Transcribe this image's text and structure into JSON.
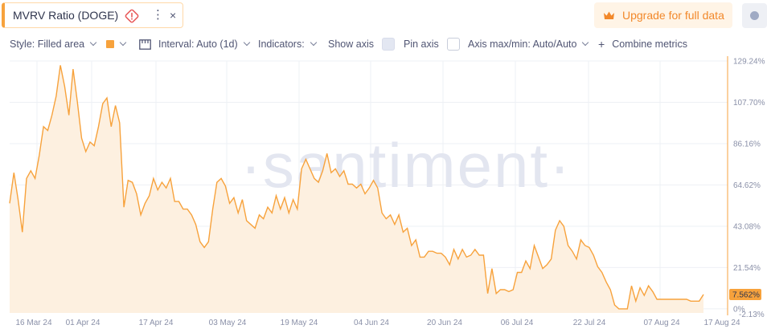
{
  "metric": {
    "title": "MVRV Ratio (DOGE)",
    "warning_icon": "warning-diamond-icon",
    "more_icon": "vertical-dots-icon",
    "close_label": "×"
  },
  "upgrade": {
    "label": "Upgrade for full data",
    "icon": "crown-icon"
  },
  "settings": {
    "icon": "settings-dot-icon"
  },
  "toolbar": {
    "style_label": "Style: Filled area",
    "color_value": "#f7a23c",
    "interval_label": "Interval: Auto (1d)",
    "indicators_label": "Indicators:",
    "show_axis_label": "Show axis",
    "show_axis_checked": true,
    "pin_axis_label": "Pin axis",
    "pin_axis_checked": false,
    "axis_label": "Axis max/min: Auto/Auto",
    "combine_label": "Combine metrics"
  },
  "watermark": "·santiment·",
  "chart_data": {
    "type": "area",
    "color": "#f7a23c",
    "fill": "#fdf0e0",
    "grid": true,
    "y_ticks": [
      "129.24%",
      "107.70%",
      "86.16%",
      "64.62%",
      "43.08%",
      "21.54%",
      "0%"
    ],
    "ylim": [
      -2.13,
      129.24
    ],
    "ylim_label": "-2.13%",
    "last_value_label": "7.562%",
    "x_ticks": [
      "16 Mar 24",
      "01 Apr 24",
      "17 Apr 24",
      "03 May 24",
      "19 May 24",
      "04 Jun 24",
      "20 Jun 24",
      "06 Jul 24",
      "22 Jul 24",
      "07 Aug 24",
      "17 Aug 24"
    ],
    "x_start": "2024-03-12",
    "values": [
      55,
      71,
      57,
      40,
      68,
      72,
      68,
      80,
      95,
      93,
      101,
      111,
      127,
      116,
      101,
      125,
      108,
      89,
      82,
      87,
      85,
      95,
      107,
      110,
      95,
      106,
      97,
      53,
      67,
      66,
      60,
      49,
      55,
      59,
      68,
      62,
      66,
      63,
      68,
      56,
      56,
      52,
      52,
      49,
      44,
      35,
      32,
      35,
      52,
      66,
      68,
      64,
      55,
      58,
      50,
      57,
      46,
      44,
      42,
      49,
      47,
      53,
      50,
      59,
      52,
      58,
      50,
      57,
      52,
      73,
      78,
      73,
      68,
      66,
      72,
      81,
      71,
      73,
      69,
      72,
      65,
      65,
      63,
      65,
      60,
      63,
      67,
      63,
      50,
      47,
      49,
      44,
      49,
      40,
      42,
      33,
      36,
      27,
      27,
      30,
      30,
      29,
      29,
      27,
      23,
      31,
      26,
      31,
      27,
      28,
      31,
      28,
      28,
      8,
      21,
      8,
      10,
      10,
      9,
      10,
      19,
      19,
      25,
      21,
      33,
      27,
      21,
      23,
      26,
      41,
      46,
      43,
      33,
      30,
      26,
      36,
      33,
      32,
      28,
      22,
      19,
      14,
      10,
      2,
      0,
      0,
      0,
      12,
      4,
      11,
      7,
      12,
      9,
      5,
      5,
      5,
      5,
      5,
      5,
      5,
      5,
      4,
      4,
      4,
      7.5
    ]
  }
}
